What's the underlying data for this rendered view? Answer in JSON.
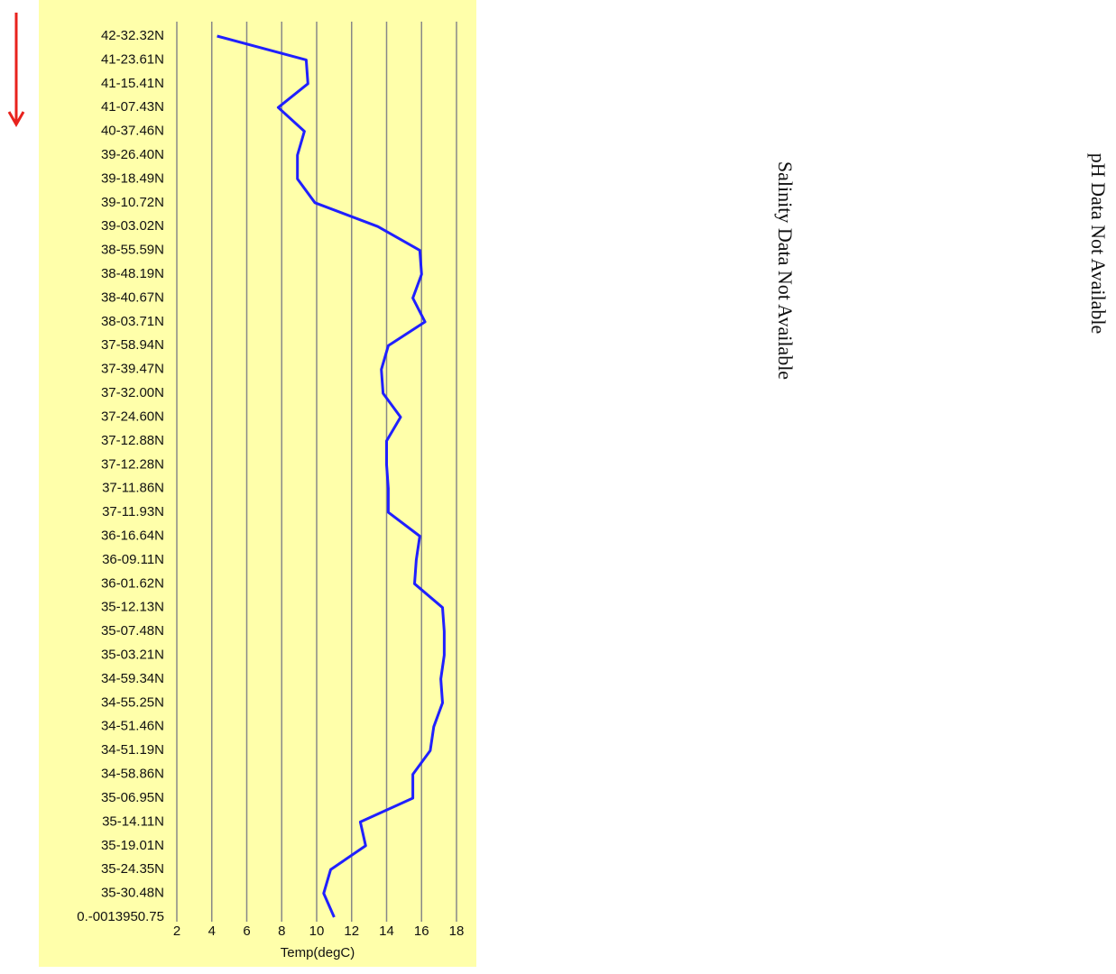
{
  "chart_data": {
    "type": "line",
    "orientation": "horizontal",
    "x_label": "Temp(degC)",
    "categories": [
      "42-32.32N",
      "41-23.61N",
      "41-15.41N",
      "41-07.43N",
      "40-37.46N",
      "39-26.40N",
      "39-18.49N",
      "39-10.72N",
      "39-03.02N",
      "38-55.59N",
      "38-48.19N",
      "38-40.67N",
      "38-03.71N",
      "37-58.94N",
      "37-39.47N",
      "37-32.00N",
      "37-24.60N",
      "37-12.88N",
      "37-12.28N",
      "37-11.86N",
      "37-11.93N",
      "36-16.64N",
      "36-09.11N",
      "36-01.62N",
      "35-12.13N",
      "35-07.48N",
      "35-03.21N",
      "34-59.34N",
      "34-55.25N",
      "34-51.46N",
      "34-51.19N",
      "34-58.86N",
      "35-06.95N",
      "35-14.11N",
      "35-19.01N",
      "35-24.35N",
      "35-30.48N",
      "0.-0013950.75"
    ],
    "values": [
      4.3,
      9.4,
      9.5,
      7.8,
      9.3,
      8.9,
      8.9,
      9.9,
      13.5,
      15.9,
      16.0,
      15.5,
      16.2,
      14.1,
      13.7,
      13.8,
      14.8,
      14.0,
      14.0,
      14.1,
      14.1,
      15.9,
      15.7,
      15.6,
      17.2,
      17.3,
      17.3,
      17.1,
      17.2,
      16.7,
      16.5,
      15.5,
      15.5,
      12.5,
      12.8,
      10.8,
      10.4,
      11.0
    ],
    "color": "#2020ff",
    "xlim": [
      2,
      18
    ],
    "xticks": [
      2,
      4,
      6,
      8,
      10,
      12,
      14,
      16,
      18
    ],
    "grid": true
  },
  "notes": [
    "Salinity Data Not Available",
    "pH Data Not Available"
  ]
}
